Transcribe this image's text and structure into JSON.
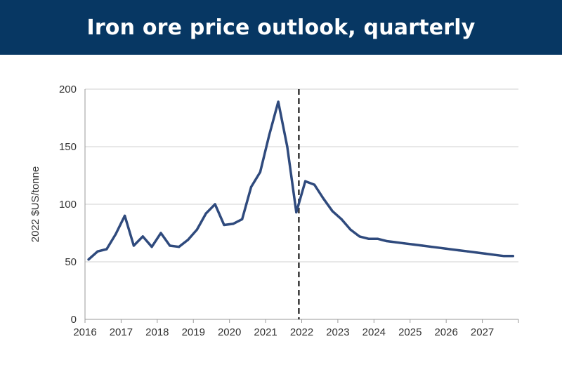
{
  "header": {
    "title": "Iron ore price outlook, quarterly",
    "background_color": "#073763"
  },
  "chart_data": {
    "type": "line",
    "title": "Iron ore price outlook, quarterly",
    "xlabel": "",
    "ylabel": "2022 $US/tonne",
    "xlim": [
      2016,
      2028
    ],
    "ylim": [
      0,
      200
    ],
    "x_ticks": [
      "2016",
      "2017",
      "2018",
      "2019",
      "2020",
      "2021",
      "2022",
      "2023",
      "2024",
      "2025",
      "2026",
      "2027"
    ],
    "y_ticks": [
      "0",
      "50",
      "100",
      "150",
      "200"
    ],
    "grid": "horizontal",
    "legend": "none",
    "line_color": "#2f4a7d",
    "annotations": [
      {
        "type": "vertical-dashed-line",
        "x": 2021.92,
        "meaning": "forecast start"
      }
    ],
    "series": [
      {
        "x": [
          2016.1,
          2016.35,
          2016.6,
          2016.85,
          2017.1,
          2017.35,
          2017.6,
          2017.85,
          2018.1,
          2018.35,
          2018.6,
          2018.85,
          2019.1,
          2019.35,
          2019.6,
          2019.85,
          2020.1,
          2020.35,
          2020.6,
          2020.85,
          2021.1,
          2021.35,
          2021.6,
          2021.85,
          2022.1,
          2022.35,
          2022.6,
          2022.85,
          2023.1,
          2023.35,
          2023.6,
          2023.85,
          2024.1,
          2024.35,
          2024.6,
          2024.85,
          2025.1,
          2025.35,
          2025.6,
          2025.85,
          2026.1,
          2026.35,
          2026.6,
          2026.85,
          2027.1,
          2027.35,
          2027.6,
          2027.85
        ],
        "values": [
          52,
          59,
          61,
          74,
          90,
          64,
          72,
          63,
          75,
          64,
          63,
          69,
          78,
          92,
          100,
          82,
          83,
          87,
          115,
          128,
          160,
          189,
          150,
          93,
          120,
          117,
          105,
          94,
          87,
          78,
          72,
          70,
          70,
          68,
          67,
          66,
          65,
          64,
          63,
          62,
          61,
          60,
          59,
          58,
          57,
          56,
          55,
          55
        ]
      }
    ]
  }
}
